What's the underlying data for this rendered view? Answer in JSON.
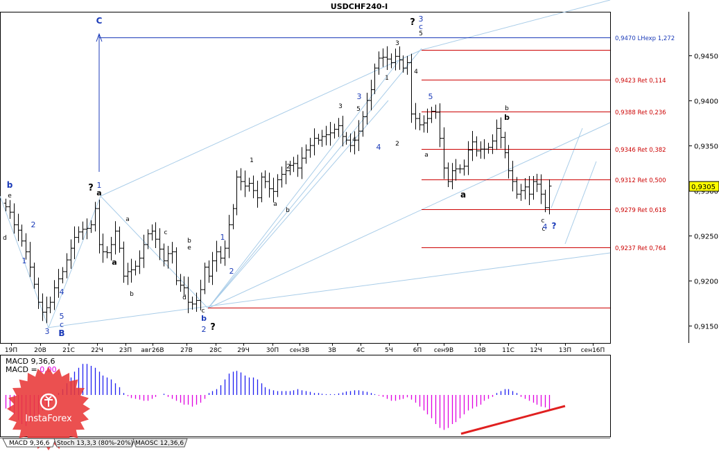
{
  "title": "USDCHF240-I",
  "colors": {
    "bar": "#000000",
    "fibo": "#cc0000",
    "fibo_text": "#cc0000",
    "channel": "#a8cce8",
    "wave_blue": "#1a3ab8",
    "wave_black": "#000000",
    "macd_up": "#1e1ef0",
    "macd_down": "#e000e0",
    "price_box": "#ffff00",
    "trend_red": "#e02020"
  },
  "chart_data": {
    "type": "ohlc",
    "symbol": "USDCHF",
    "timeframe": "H4",
    "ylim": [
      0.9125,
      0.949
    ],
    "y_ticks": [
      "0,9150",
      "0,9200",
      "0,9250",
      "0,9300",
      "0,9350",
      "0,9400",
      "0,9450"
    ],
    "y_tick_values": [
      0.915,
      0.92,
      0.925,
      0.93,
      0.935,
      0.94,
      0.945
    ],
    "x_ticks": [
      "19П",
      "20В",
      "21С",
      "22Ч",
      "23П",
      "авг26В",
      "27В",
      "28С",
      "29Ч",
      "30П",
      "сен3В",
      "3В",
      "4С",
      "5Ч",
      "6П",
      "сен9В",
      "10В",
      "11С",
      "12Ч",
      "13П",
      "сен16П"
    ],
    "current_price": "0,9305",
    "current_price_value": 0.9305,
    "fibo_levels": [
      {
        "label": "0,9470 LHexp 1,272",
        "value": 0.947
      },
      {
        "label": "0,9423 Ret 0,114",
        "value": 0.9423
      },
      {
        "label": "0,9388 Ret 0,236",
        "value": 0.9388
      },
      {
        "label": "0,9346 Ret 0,382",
        "value": 0.9346
      },
      {
        "label": "0,9312 Ret 0,500",
        "value": 0.9312
      },
      {
        "label": "0,9279 Ret 0,618",
        "value": 0.9279
      },
      {
        "label": "0,9237 Ret 0,764",
        "value": 0.9237
      }
    ],
    "support_level": 0.917,
    "top_level": 0.9456,
    "close_series": [
      0.9282,
      0.9276,
      0.9262,
      0.9256,
      0.9244,
      0.9232,
      0.9215,
      0.9196,
      0.9176,
      0.9165,
      0.917,
      0.9176,
      0.9192,
      0.9202,
      0.921,
      0.9223,
      0.9236,
      0.9248,
      0.9254,
      0.9257,
      0.9258,
      0.9262,
      0.928,
      0.924,
      0.9232,
      0.9231,
      0.924,
      0.9255,
      0.9236,
      0.9205,
      0.921,
      0.9212,
      0.9216,
      0.9225,
      0.924,
      0.9252,
      0.9255,
      0.9246,
      0.9235,
      0.9222,
      0.923,
      0.9232,
      0.92,
      0.9195,
      0.9192,
      0.9176,
      0.9174,
      0.9178,
      0.919,
      0.9215,
      0.9205,
      0.9222,
      0.9232,
      0.9225,
      0.9236,
      0.9262,
      0.928,
      0.9315,
      0.931,
      0.9305,
      0.9308,
      0.93,
      0.9292,
      0.9315,
      0.931,
      0.9302,
      0.9299,
      0.9312,
      0.9318,
      0.9322,
      0.9328,
      0.933,
      0.9325,
      0.9336,
      0.9345,
      0.935,
      0.9358,
      0.9356,
      0.936,
      0.9362,
      0.9364,
      0.9368,
      0.9372,
      0.936,
      0.9356,
      0.935,
      0.9356,
      0.9366,
      0.9382,
      0.94,
      0.9412,
      0.9436,
      0.9447,
      0.9448,
      0.9446,
      0.9442,
      0.9449,
      0.9445,
      0.9436,
      0.9442,
      0.9385,
      0.938,
      0.9373,
      0.9375,
      0.938,
      0.9388,
      0.9387,
      0.9358,
      0.9325,
      0.931,
      0.9322,
      0.9324,
      0.9324,
      0.9327,
      0.9345,
      0.9354,
      0.9344,
      0.9346,
      0.9346,
      0.9348,
      0.9355,
      0.9369,
      0.9359,
      0.9342,
      0.9322,
      0.931,
      0.9296,
      0.93,
      0.9304,
      0.9296,
      0.931,
      0.9307,
      0.9296,
      0.9281,
      0.9305
    ],
    "macd_series": [
      -3.5,
      -4.0,
      -5.0,
      -6.5,
      -7.5,
      -8.0,
      -7.0,
      -6.0,
      -5.0,
      -4.0,
      -3.0,
      -2.0,
      -1.0,
      0.5,
      1.5,
      3.0,
      4.5,
      6.0,
      7.0,
      8.0,
      8.0,
      7.5,
      7.0,
      6.0,
      5.0,
      4.5,
      4.0,
      3.0,
      2.0,
      0.5,
      -0.3,
      -0.8,
      -1.0,
      -1.2,
      -1.5,
      -1.5,
      -1.0,
      -0.5,
      0.0,
      0.3,
      -0.5,
      -1.0,
      -1.5,
      -2.0,
      -2.5,
      -2.5,
      -3.0,
      -2.5,
      -2.0,
      -1.0,
      0.5,
      1.0,
      1.5,
      2.5,
      4.0,
      5.5,
      6.0,
      6.2,
      5.8,
      5.0,
      4.5,
      4.5,
      4.0,
      3.0,
      2.0,
      1.5,
      1.2,
      1.0,
      1.0,
      1.0,
      1.0,
      1.2,
      1.5,
      1.2,
      1.0,
      0.8,
      0.5,
      0.5,
      0.3,
      0.2,
      0.2,
      0.2,
      0.4,
      0.6,
      0.9,
      1.0,
      1.2,
      1.2,
      1.0,
      0.8,
      0.5,
      0.2,
      -0.2,
      -0.5,
      -1.0,
      -1.5,
      -1.5,
      -1.2,
      -1.0,
      -0.6,
      -1.2,
      -2.0,
      -3.0,
      -4.0,
      -5.0,
      -6.0,
      -7.5,
      -8.5,
      -9.0,
      -8.5,
      -7.5,
      -7.0,
      -6.0,
      -5.0,
      -4.0,
      -3.5,
      -3.0,
      -2.5,
      -1.5,
      -1.0,
      -0.5,
      0.5,
      1.0,
      1.5,
      1.5,
      1.0,
      0.5,
      -0.5,
      -1.0,
      -1.5,
      -2.0,
      -2.5,
      -3.0,
      -3.2,
      -4.0
    ]
  },
  "waves": [
    {
      "t": "b",
      "c": "blue"
    },
    {
      "t": "e",
      "c": "black"
    },
    {
      "t": "d",
      "c": "black"
    },
    {
      "t": "2",
      "c": "blue"
    },
    {
      "t": "1",
      "c": "blue"
    },
    {
      "t": "4",
      "c": "blue"
    },
    {
      "t": "3",
      "c": "blue"
    },
    {
      "t": "5",
      "c": "blue"
    },
    {
      "t": "c",
      "c": "blue"
    },
    {
      "t": "B",
      "c": "blue"
    },
    {
      "t": "?",
      "c": "black"
    },
    {
      "t": "1",
      "c": "blue"
    },
    {
      "t": "a",
      "c": "black"
    },
    {
      "t": "a",
      "c": "black"
    },
    {
      "t": "b",
      "c": "black"
    },
    {
      "t": "a",
      "c": "black"
    },
    {
      "t": "c",
      "c": "black"
    },
    {
      "t": "b",
      "c": "black"
    },
    {
      "t": "e",
      "c": "black"
    },
    {
      "t": "d",
      "c": "black"
    },
    {
      "t": "c",
      "c": "black"
    },
    {
      "t": "b",
      "c": "blue"
    },
    {
      "t": "2",
      "c": "blue"
    },
    {
      "t": "?",
      "c": "black"
    },
    {
      "t": "1",
      "c": "blue"
    },
    {
      "t": "2",
      "c": "blue"
    },
    {
      "t": "1",
      "c": "black"
    },
    {
      "t": "a",
      "c": "black"
    },
    {
      "t": "b",
      "c": "black"
    },
    {
      "t": "2",
      "c": "black"
    },
    {
      "t": "3",
      "c": "black"
    },
    {
      "t": "5",
      "c": "black"
    },
    {
      "t": "4",
      "c": "black"
    },
    {
      "t": "3",
      "c": "blue"
    },
    {
      "t": "4",
      "c": "blue"
    },
    {
      "t": "1",
      "c": "black"
    },
    {
      "t": "2",
      "c": "black"
    },
    {
      "t": "3",
      "c": "black"
    },
    {
      "t": "4",
      "c": "black"
    },
    {
      "t": "5",
      "c": "black"
    },
    {
      "t": "?",
      "c": "black"
    },
    {
      "t": "3",
      "c": "blue"
    },
    {
      "t": "c",
      "c": "blue"
    },
    {
      "t": "5",
      "c": "blue"
    },
    {
      "t": "a",
      "c": "black"
    },
    {
      "t": "a",
      "c": "black"
    },
    {
      "t": "b",
      "c": "black"
    },
    {
      "t": "b",
      "c": "black"
    },
    {
      "t": "c",
      "c": "black"
    },
    {
      "t": "c",
      "c": "black"
    },
    {
      "t": "4",
      "c": "blue"
    },
    {
      "t": "?",
      "c": "blue"
    },
    {
      "t": "C",
      "c": "blue"
    }
  ],
  "macd_label": "MACD 9,36,6",
  "macd_zero_label_prefix": "MACD = ",
  "macd_zero_value": "0,00",
  "tabs": [
    "MACD 9,36,6",
    "Stoch 13,3,3 (80%-20%)",
    "MAOSC 12,36,6"
  ],
  "watermark": "InstaForex"
}
